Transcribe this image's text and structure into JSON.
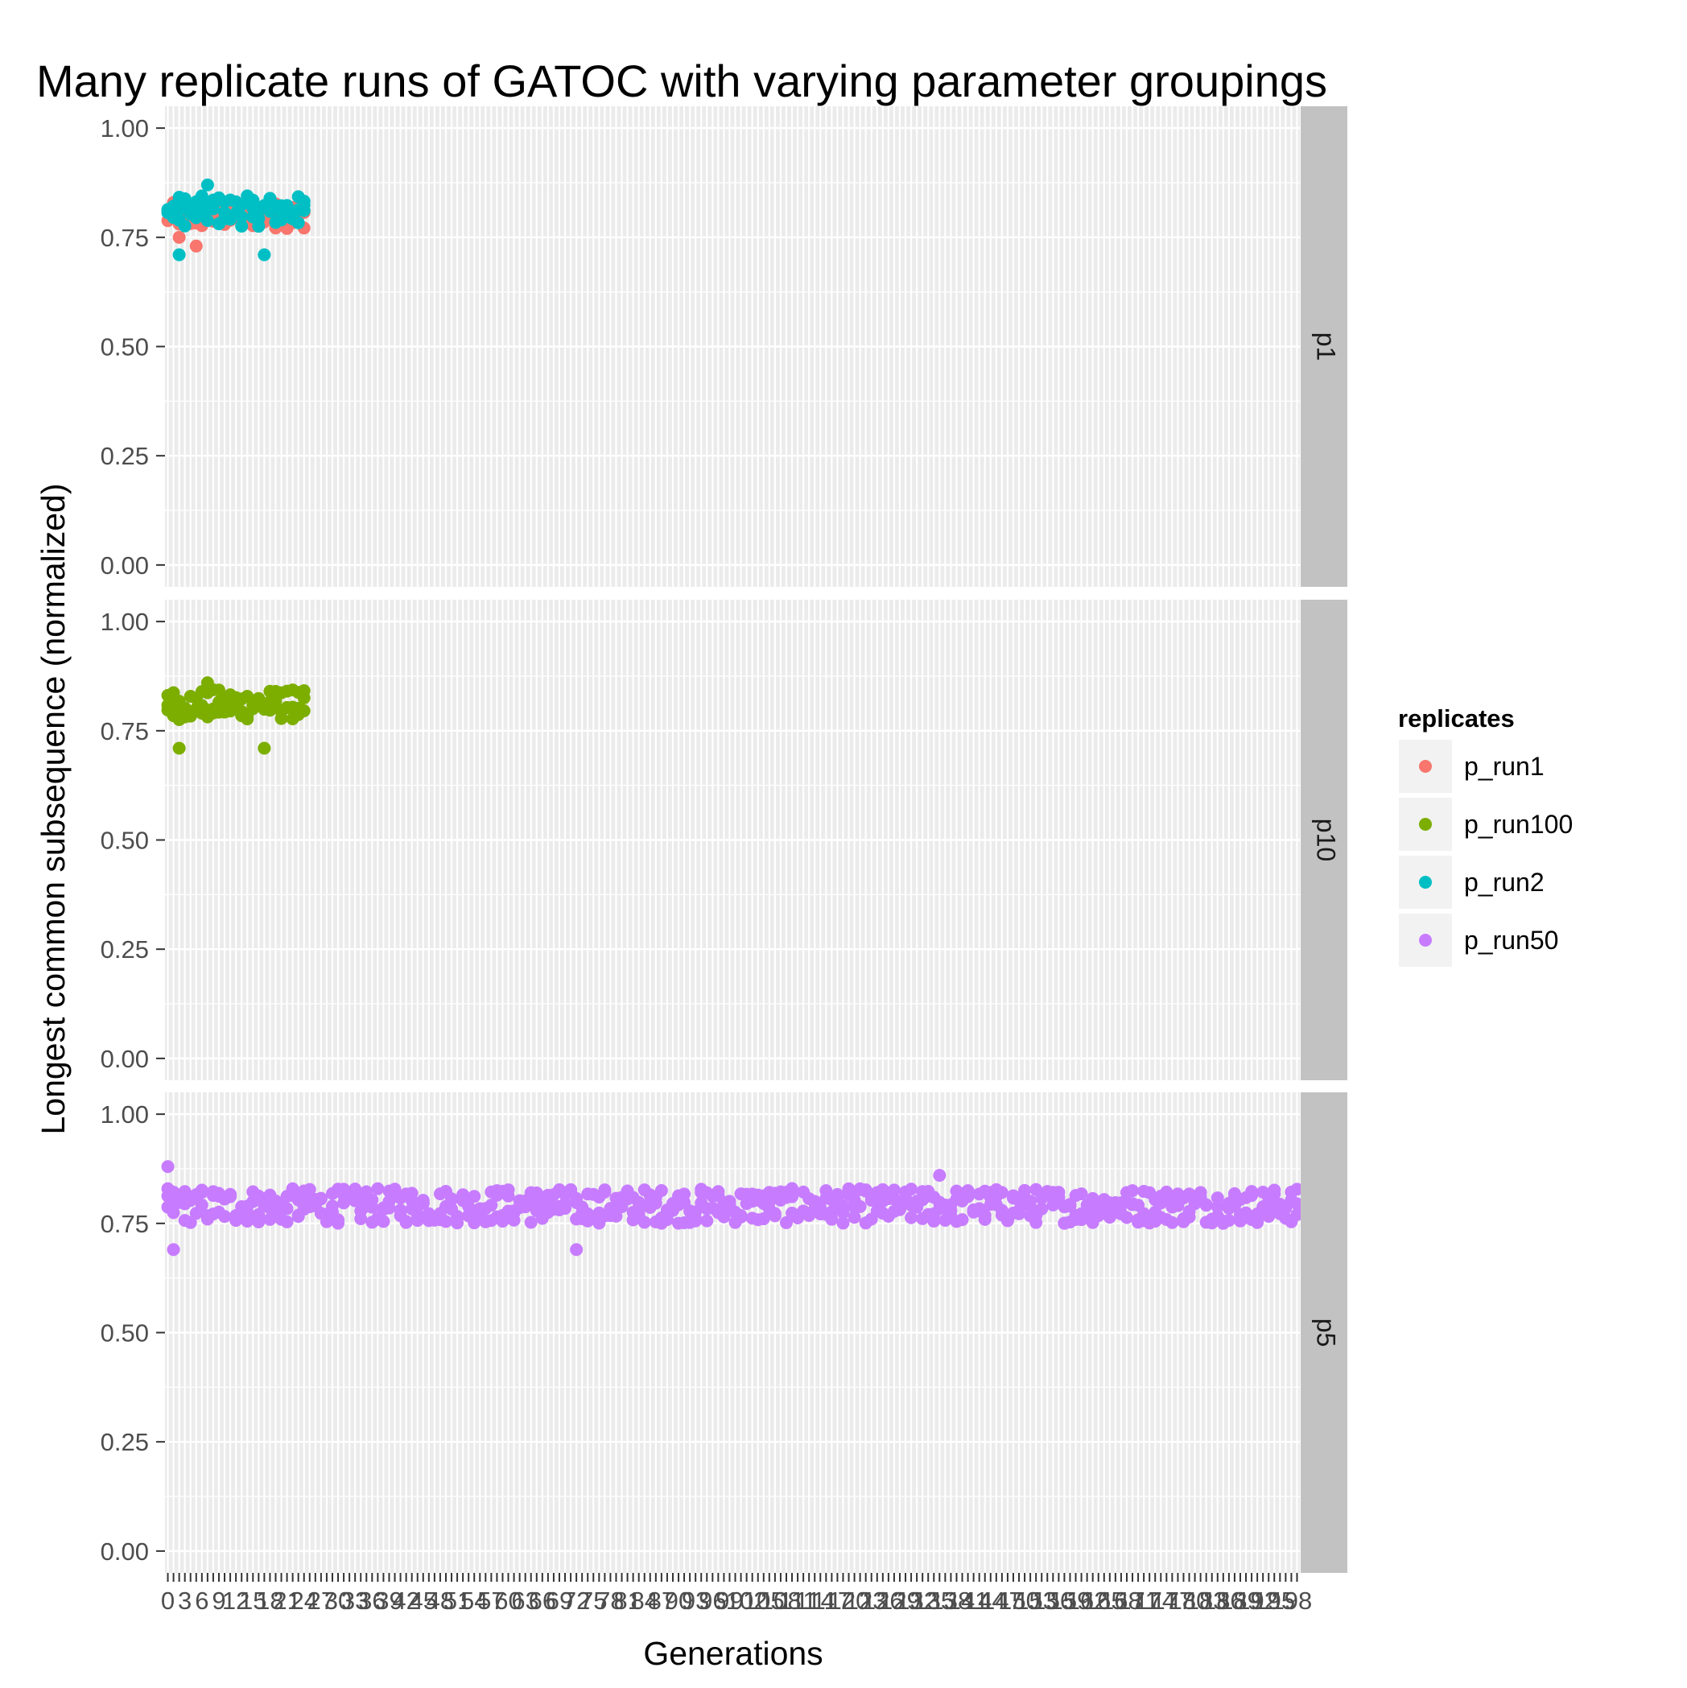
{
  "chart_data": {
    "type": "scatter",
    "title": "Many replicate runs of GATOC with varying parameter groupings",
    "xlabel": "Generations",
    "ylabel": "Longest common subsequence (normalized)",
    "ylim": [
      -0.05,
      1.05
    ],
    "yticks": [
      "0.00",
      "0.25",
      "0.50",
      "0.75",
      "1.00"
    ],
    "ytick_values": [
      0,
      0.25,
      0.5,
      0.75,
      1.0
    ],
    "xlim": [
      0.5,
      200.5
    ],
    "x_categories_count": 200,
    "grid": true,
    "facets": [
      {
        "label": "p1",
        "series": [
          {
            "name": "p_run1",
            "x_range": [
              1,
              25
            ],
            "y_mean": 0.8,
            "y_spread": 0.03,
            "outliers": [
              [
                3,
                0.75
              ],
              [
                6,
                0.73
              ]
            ]
          },
          {
            "name": "p_run2",
            "x_range": [
              1,
              25
            ],
            "y_mean": 0.81,
            "y_spread": 0.035,
            "outliers": [
              [
                3,
                0.71
              ],
              [
                18,
                0.71
              ],
              [
                8,
                0.87
              ]
            ]
          }
        ]
      },
      {
        "label": "p10",
        "series": [
          {
            "name": "p_run100",
            "x_range": [
              1,
              25
            ],
            "y_mean": 0.81,
            "y_spread": 0.035,
            "outliers": [
              [
                3,
                0.71
              ],
              [
                18,
                0.71
              ],
              [
                8,
                0.86
              ]
            ]
          }
        ]
      },
      {
        "label": "p5",
        "series": [
          {
            "name": "p_run50",
            "x_range": [
              1,
              200
            ],
            "y_mean": 0.79,
            "y_spread": 0.04,
            "outliers": [
              [
                1,
                0.88
              ],
              [
                2,
                0.69
              ],
              [
                73,
                0.69
              ],
              [
                137,
                0.86
              ]
            ]
          }
        ]
      }
    ],
    "legend": {
      "title": "replicates",
      "position": "right",
      "entries": [
        {
          "name": "p_run1",
          "color": "#F8766D"
        },
        {
          "name": "p_run100",
          "color": "#7CAE00"
        },
        {
          "name": "p_run2",
          "color": "#00BFC4"
        },
        {
          "name": "p_run50",
          "color": "#C77CFF"
        }
      ]
    }
  },
  "colors": {
    "panel_bg": "#EBEBEB",
    "grid": "#FFFFFF",
    "strip_bg": "#C2C2C2",
    "legend_key_bg": "#F2F2F2"
  }
}
